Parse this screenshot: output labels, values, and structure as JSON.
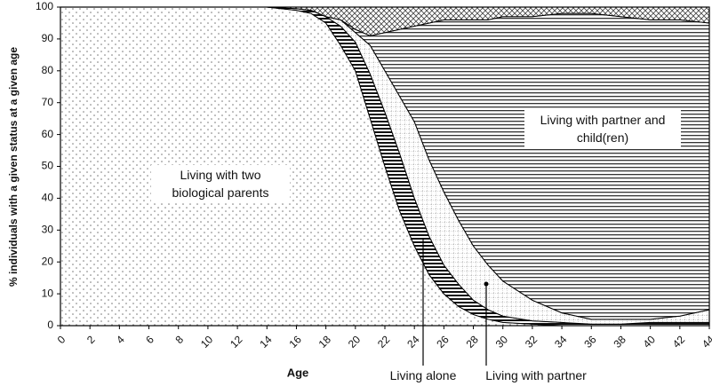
{
  "chart_data": {
    "type": "stacked-area",
    "x_label": "Age",
    "y_label": "% individuals with a given status at a given age",
    "x": [
      0,
      2,
      4,
      6,
      8,
      10,
      12,
      14,
      16,
      17,
      18,
      19,
      20,
      21,
      22,
      23,
      24,
      25,
      26,
      27,
      28,
      29,
      30,
      32,
      34,
      36,
      38,
      40,
      42,
      44
    ],
    "series": [
      {
        "name": "Living with two biological parents",
        "values": [
          100,
          100,
          100,
          100,
          100,
          100,
          100,
          100,
          99,
          98,
          95,
          88,
          80,
          65,
          50,
          36,
          25,
          16,
          10,
          6,
          3.5,
          2,
          1,
          0.5,
          0,
          0,
          0,
          0,
          0,
          0
        ]
      },
      {
        "name": "Living alone",
        "values": [
          0,
          0,
          0,
          0,
          0,
          0,
          0,
          0,
          0.5,
          1,
          2,
          6,
          9,
          14,
          17,
          18,
          15,
          12,
          9,
          7,
          4.5,
          3,
          2,
          1,
          1,
          0.5,
          0.5,
          1,
          1,
          1
        ]
      },
      {
        "name": "Living with partner",
        "values": [
          0,
          0,
          0,
          0,
          0,
          0,
          0,
          0,
          0,
          0,
          0,
          2,
          3,
          9,
          13,
          18,
          24,
          24,
          23,
          20,
          17,
          14,
          11,
          6.5,
          3,
          1.5,
          1.5,
          1,
          2,
          4
        ]
      },
      {
        "name": "Living with partner and child(ren)",
        "values": [
          0,
          0,
          0,
          0,
          0,
          0,
          0,
          0,
          0,
          0,
          0,
          0,
          1,
          3,
          12,
          21,
          30,
          43,
          54,
          63,
          71,
          77,
          83,
          89,
          94,
          96,
          95,
          94,
          93,
          90
        ]
      },
      {
        "values": [
          0,
          0,
          0,
          0,
          0,
          0,
          0,
          0,
          0.5,
          1,
          3,
          4,
          7,
          9,
          8,
          7,
          6,
          5,
          4,
          4,
          4,
          4,
          3,
          3,
          2,
          2,
          3,
          4,
          4,
          5
        ]
      }
    ],
    "xlim": [
      0,
      44
    ],
    "xticks": [
      0,
      2,
      4,
      6,
      8,
      10,
      12,
      14,
      16,
      18,
      20,
      22,
      24,
      26,
      28,
      30,
      32,
      34,
      36,
      38,
      40,
      42,
      44
    ],
    "ylim": [
      0,
      100
    ],
    "yticks": [
      0,
      10,
      20,
      30,
      40,
      50,
      60,
      70,
      80,
      90,
      100
    ]
  }
}
